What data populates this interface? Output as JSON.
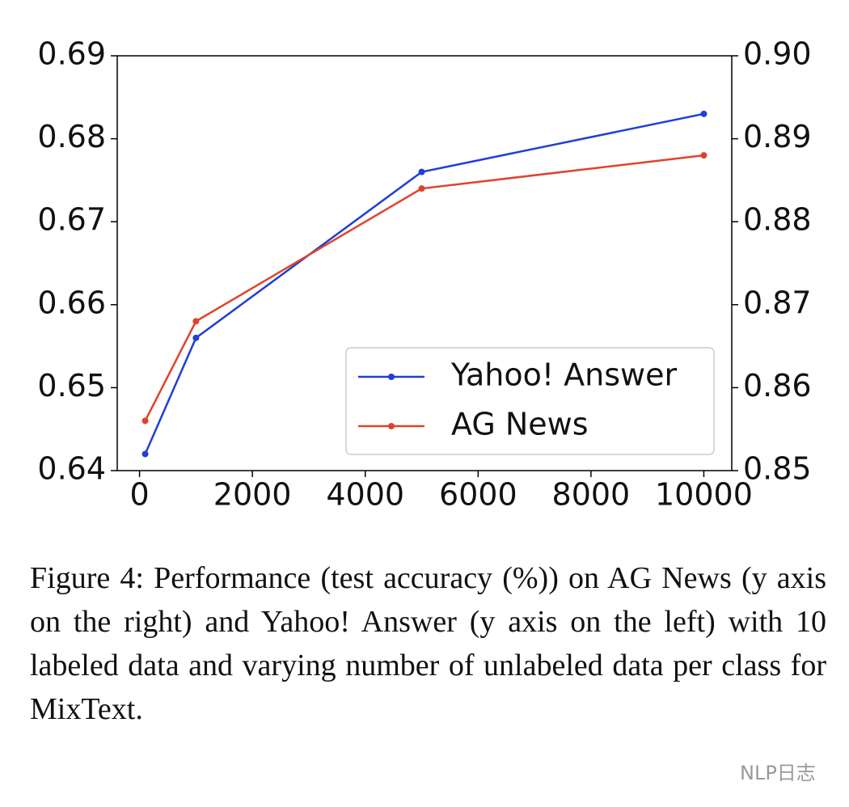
{
  "chart_data": {
    "type": "line",
    "x": [
      100,
      1000,
      5000,
      10000
    ],
    "xlim": [
      -395,
      10495
    ],
    "xticks": [
      0,
      2000,
      4000,
      6000,
      8000,
      10000
    ],
    "ylim": [
      0.64,
      0.69
    ],
    "yticks": [
      0.64,
      0.65,
      0.66,
      0.67,
      0.68,
      0.69
    ],
    "y2lim": [
      0.85,
      0.9
    ],
    "y2ticks": [
      0.85,
      0.86,
      0.87,
      0.88,
      0.89,
      {
        "value": 0.9,
        "label": "0.90"
      }
    ],
    "legend": "lower right",
    "series": [
      {
        "name": "Yahoo! Answer",
        "color": "#1f3fd6",
        "values": [
          0.642,
          0.656,
          0.676,
          0.683
        ]
      },
      {
        "name": "AG News",
        "color": "#e0432c",
        "values": [
          0.856,
          0.868,
          0.884,
          0.888
        ],
        "axis": "y2"
      }
    ]
  },
  "caption": "Figure 4: Performance (test accuracy (%)) on AG News (y axis on the right) and Yahoo! Answer (y axis on the left) with 10 labeled data and varying number of unlabeled data per class for MixText.",
  "watermark": "NLP日志"
}
